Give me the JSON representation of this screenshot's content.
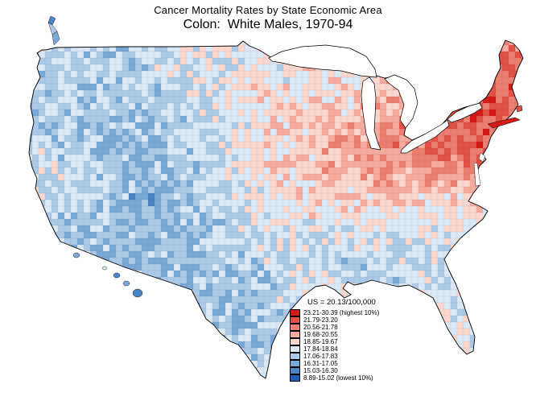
{
  "title": "Cancer Mortality Rates by State Economic Area",
  "subtitle": "Colon:  White Males, 1970-94",
  "legend": {
    "us_rate_label": "US = 20.13/100,000",
    "entries": [
      {
        "label": "23.21-30.39 (highest 10%)"
      },
      {
        "label": "21.79-23.20"
      },
      {
        "label": "20.56-21.78"
      },
      {
        "label": "19.68-20.55"
      },
      {
        "label": "18.85-19.67"
      },
      {
        "label": "17.84-18.84"
      },
      {
        "label": "17.06-17.83"
      },
      {
        "label": "16.31-17.05"
      },
      {
        "label": "15.03-16.30"
      },
      {
        "label": "8.89-15.02 (lowest 10%)"
      }
    ]
  },
  "map": {
    "outline_color": "#000000",
    "water_color": "#ffffff",
    "class_colors_low_to_high": [
      "#1d5fb5",
      "#4a84c4",
      "#7aa8d7",
      "#acc9e8",
      "#dbe9f6",
      "#fbd7cf",
      "#f5ab9e",
      "#ec7f71",
      "#e35046",
      "#d61a1a"
    ],
    "influence_points": [
      [
        615,
        75,
        9
      ],
      [
        632,
        92,
        8
      ],
      [
        600,
        108,
        7
      ],
      [
        578,
        120,
        9
      ],
      [
        552,
        148,
        9
      ],
      [
        612,
        138,
        9
      ],
      [
        627,
        148,
        8
      ],
      [
        600,
        154,
        9
      ],
      [
        589,
        168,
        9
      ],
      [
        600,
        184,
        9
      ],
      [
        540,
        172,
        8
      ],
      [
        522,
        190,
        9
      ],
      [
        550,
        196,
        8
      ],
      [
        507,
        204,
        8
      ],
      [
        574,
        198,
        8
      ],
      [
        562,
        214,
        7
      ],
      [
        488,
        194,
        8
      ],
      [
        478,
        216,
        7
      ],
      [
        500,
        230,
        6
      ],
      [
        453,
        204,
        7
      ],
      [
        448,
        234,
        6
      ],
      [
        425,
        184,
        8
      ],
      [
        408,
        214,
        7
      ],
      [
        398,
        244,
        5
      ],
      [
        478,
        150,
        6
      ],
      [
        489,
        172,
        8
      ],
      [
        466,
        120,
        5
      ],
      [
        432,
        95,
        4
      ],
      [
        456,
        98,
        5
      ],
      [
        428,
        134,
        5
      ],
      [
        447,
        152,
        7
      ],
      [
        410,
        120,
        4
      ],
      [
        352,
        95,
        4
      ],
      [
        346,
        140,
        5
      ],
      [
        366,
        170,
        6
      ],
      [
        372,
        200,
        6
      ],
      [
        344,
        216,
        5
      ],
      [
        386,
        244,
        5
      ],
      [
        376,
        274,
        4
      ],
      [
        404,
        256,
        6
      ],
      [
        290,
        95,
        4
      ],
      [
        312,
        115,
        5
      ],
      [
        302,
        150,
        5
      ],
      [
        270,
        160,
        3
      ],
      [
        330,
        200,
        7
      ],
      [
        290,
        206,
        4
      ],
      [
        258,
        210,
        3
      ],
      [
        310,
        246,
        5
      ],
      [
        268,
        250,
        4
      ],
      [
        160,
        85,
        3
      ],
      [
        215,
        90,
        5
      ],
      [
        265,
        95,
        4
      ],
      [
        190,
        110,
        2
      ],
      [
        215,
        150,
        3
      ],
      [
        246,
        165,
        3
      ],
      [
        185,
        160,
        2
      ],
      [
        140,
        125,
        3
      ],
      [
        160,
        165,
        2
      ],
      [
        75,
        75,
        4
      ],
      [
        95,
        90,
        2
      ],
      [
        120,
        95,
        4
      ],
      [
        140,
        85,
        3
      ],
      [
        80,
        135,
        3
      ],
      [
        115,
        145,
        4
      ],
      [
        95,
        165,
        2
      ],
      [
        110,
        200,
        4
      ],
      [
        125,
        235,
        4
      ],
      [
        165,
        205,
        1
      ],
      [
        180,
        240,
        1
      ],
      [
        48,
        195,
        4
      ],
      [
        56,
        230,
        5
      ],
      [
        75,
        260,
        3
      ],
      [
        100,
        285,
        3
      ],
      [
        125,
        300,
        2
      ],
      [
        60,
        175,
        3
      ],
      [
        225,
        215,
        2
      ],
      [
        250,
        230,
        3
      ],
      [
        205,
        235,
        2
      ],
      [
        150,
        290,
        2
      ],
      [
        175,
        320,
        2
      ],
      [
        135,
        315,
        3
      ],
      [
        220,
        290,
        1
      ],
      [
        245,
        320,
        2
      ],
      [
        235,
        350,
        2
      ],
      [
        300,
        290,
        3
      ],
      [
        330,
        300,
        4
      ],
      [
        270,
        285,
        3
      ],
      [
        260,
        330,
        2
      ],
      [
        300,
        340,
        2
      ],
      [
        330,
        370,
        2
      ],
      [
        300,
        395,
        1
      ],
      [
        330,
        430,
        2
      ],
      [
        345,
        400,
        3
      ],
      [
        362,
        355,
        3
      ],
      [
        370,
        362,
        7
      ],
      [
        345,
        330,
        3
      ],
      [
        370,
        295,
        4
      ],
      [
        390,
        310,
        3
      ],
      [
        395,
        340,
        3
      ],
      [
        415,
        355,
        4
      ],
      [
        428,
        362,
        5
      ],
      [
        425,
        325,
        2
      ],
      [
        435,
        345,
        3
      ],
      [
        455,
        320,
        2
      ],
      [
        465,
        340,
        3
      ],
      [
        490,
        310,
        3
      ],
      [
        500,
        335,
        2
      ],
      [
        475,
        325,
        2
      ],
      [
        505,
        355,
        3
      ],
      [
        540,
        372,
        4
      ],
      [
        558,
        395,
        5
      ],
      [
        574,
        418,
        4
      ],
      [
        550,
        412,
        3
      ],
      [
        430,
        280,
        3
      ],
      [
        465,
        275,
        4
      ],
      [
        494,
        272,
        4
      ],
      [
        445,
        255,
        5
      ],
      [
        475,
        250,
        5
      ],
      [
        500,
        248,
        4
      ],
      [
        515,
        220,
        6
      ],
      [
        526,
        234,
        5
      ],
      [
        540,
        240,
        5
      ],
      [
        565,
        230,
        6
      ],
      [
        555,
        252,
        4
      ],
      [
        520,
        270,
        4
      ],
      [
        555,
        268,
        4
      ],
      [
        584,
        262,
        4
      ],
      [
        525,
        292,
        3
      ],
      [
        546,
        285,
        3
      ]
    ],
    "alaska_classes": [
      1,
      3,
      2
    ],
    "hawaii_classes": [
      2,
      4,
      1,
      2,
      1
    ]
  }
}
